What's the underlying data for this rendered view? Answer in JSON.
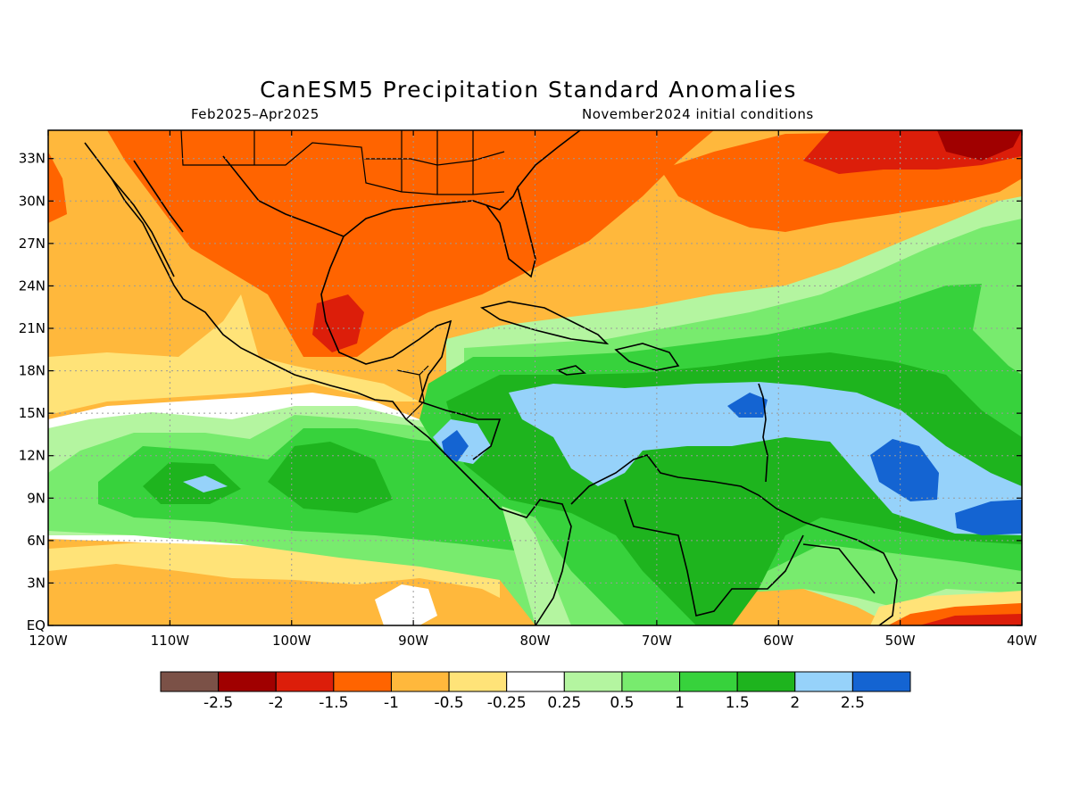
{
  "title": "CanESM5 Precipitation Standard Anomalies",
  "subtitle_left": "Feb2025–Apr2025",
  "subtitle_right": "November2024 initial conditions",
  "map": {
    "lon_range": [
      -120,
      -40
    ],
    "lat_range": [
      0,
      35
    ],
    "grid": true,
    "x_ticks": [
      {
        "lon": -120,
        "label": "120W"
      },
      {
        "lon": -110,
        "label": "110W"
      },
      {
        "lon": -100,
        "label": "100W"
      },
      {
        "lon": -90,
        "label": "90W"
      },
      {
        "lon": -80,
        "label": "80W"
      },
      {
        "lon": -70,
        "label": "70W"
      },
      {
        "lon": -60,
        "label": "60W"
      },
      {
        "lon": -50,
        "label": "50W"
      },
      {
        "lon": -40,
        "label": "40W"
      }
    ],
    "y_ticks": [
      {
        "lat": 0,
        "label": "EQ"
      },
      {
        "lat": 3,
        "label": "3N"
      },
      {
        "lat": 6,
        "label": "6N"
      },
      {
        "lat": 9,
        "label": "9N"
      },
      {
        "lat": 12,
        "label": "12N"
      },
      {
        "lat": 15,
        "label": "15N"
      },
      {
        "lat": 18,
        "label": "18N"
      },
      {
        "lat": 21,
        "label": "21N"
      },
      {
        "lat": 24,
        "label": "24N"
      },
      {
        "lat": 27,
        "label": "27N"
      },
      {
        "lat": 30,
        "label": "30N"
      },
      {
        "lat": 33,
        "label": "33N"
      }
    ]
  },
  "colorbar": {
    "colors": [
      "#7b5147",
      "#a00000",
      "#dc1e0a",
      "#ff6400",
      "#ffb83c",
      "#ffe378",
      "#ffffff",
      "#b4f5a0",
      "#78eb6e",
      "#37d23c",
      "#1eb41e",
      "#96d2fa",
      "#1464d2"
    ],
    "labels": [
      "-2.5",
      "-2",
      "-1.5",
      "-1",
      "-0.5",
      "-0.25",
      "0.25",
      "0.5",
      "1",
      "1.5",
      "2",
      "2.5"
    ]
  }
}
